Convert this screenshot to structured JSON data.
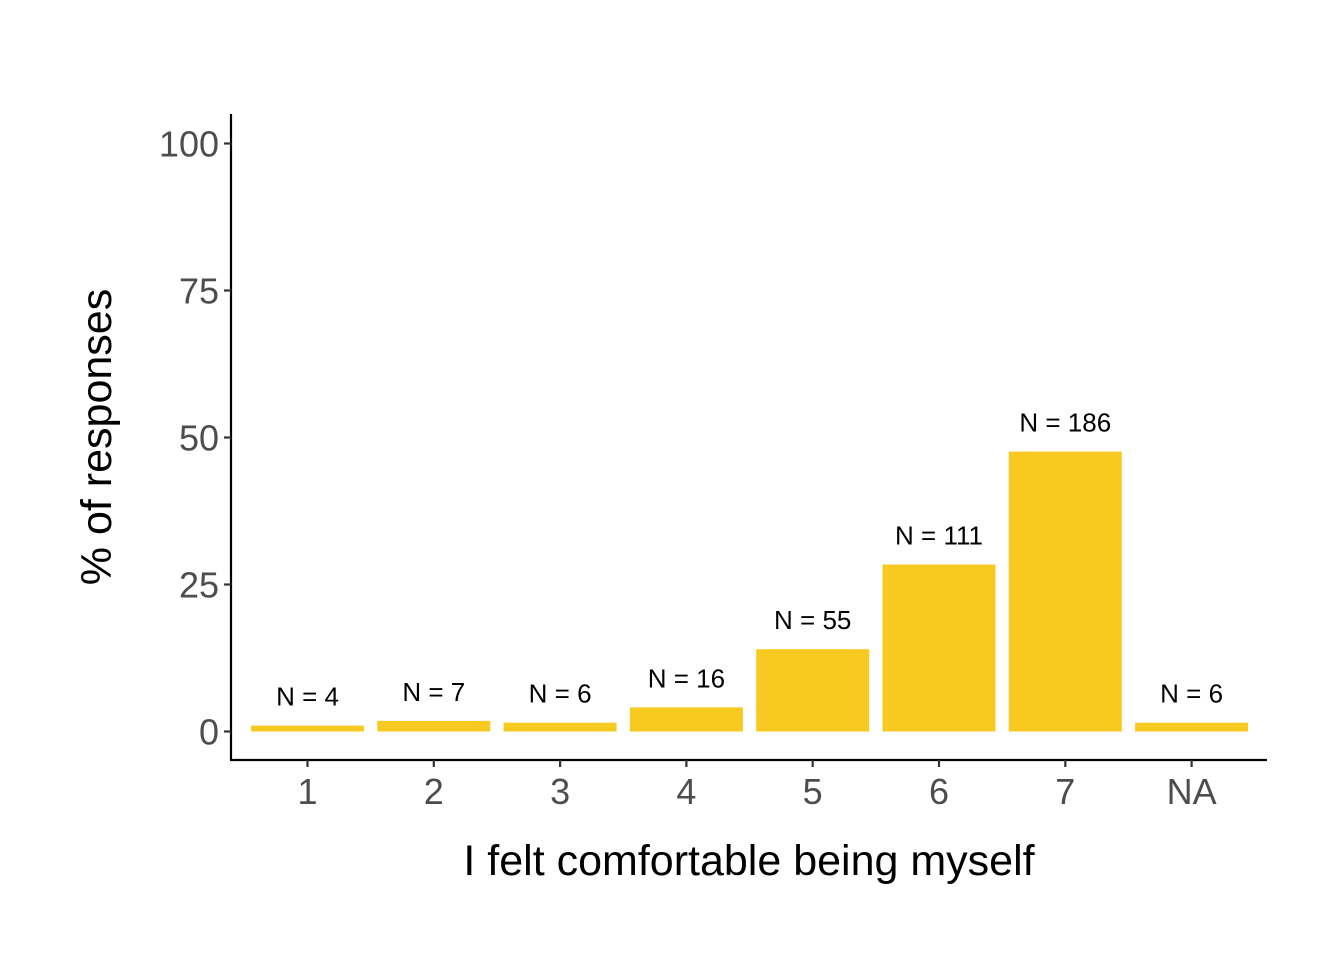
{
  "chart_data": {
    "type": "bar",
    "title": "",
    "xlabel": "I felt comfortable being myself",
    "ylabel": "% of responses",
    "categories": [
      "1",
      "2",
      "3",
      "4",
      "5",
      "6",
      "7",
      "NA"
    ],
    "values": [
      1.0,
      1.8,
      1.5,
      4.1,
      14.0,
      28.4,
      47.6,
      1.5
    ],
    "data_labels": [
      "N = 4",
      "N = 7",
      "N = 6",
      "N = 16",
      "N = 55",
      "N = 111",
      "N = 186",
      "N = 6"
    ],
    "ylim": [
      -5,
      105
    ],
    "yticks": [
      0,
      25,
      50,
      75,
      100
    ],
    "ytick_labels": [
      "0",
      "25",
      "50",
      "75",
      "100"
    ],
    "grid": false,
    "legend": "none",
    "bar_color": "#F8C920"
  }
}
